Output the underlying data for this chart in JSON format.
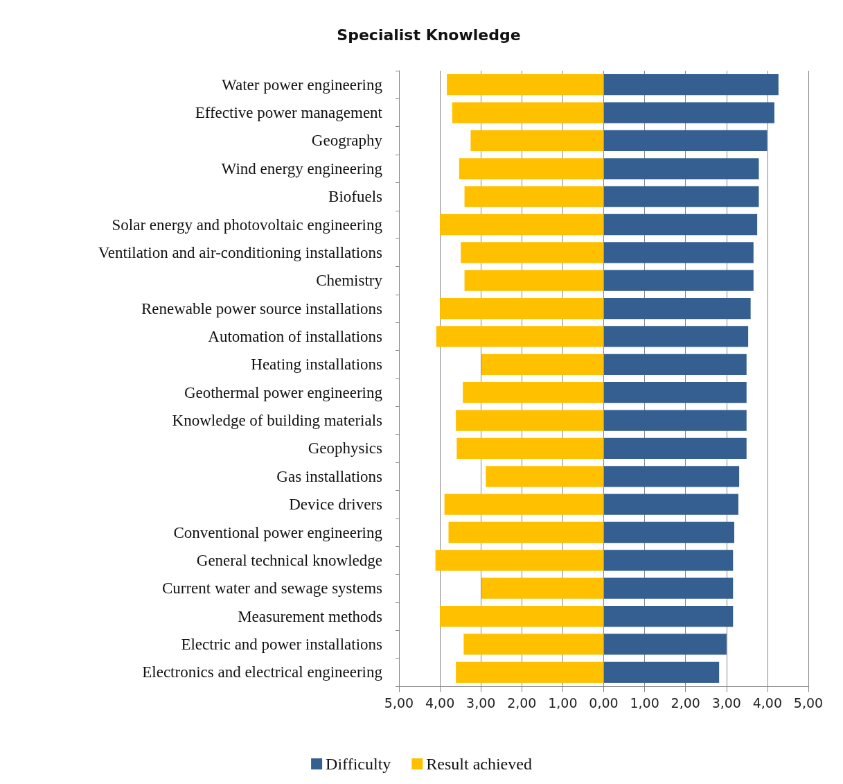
{
  "chart_data": {
    "type": "bar",
    "orientation": "horizontal",
    "stacked": true,
    "title": "Specialist Knowledge",
    "categories": [
      "Water power engineering",
      "Effective power management",
      "Geography",
      "Wind energy engineering",
      "Biofuels",
      "Solar energy and photovoltaic engineering",
      "Ventilation and air-conditioning installations",
      "Chemistry",
      "Renewable power source installations",
      "Automation of installations",
      "Heating installations",
      "Geothermal power engineering",
      "Knowledge of building materials",
      "Geophysics",
      "Gas installations",
      "Device drivers",
      "Conventional power engineering",
      "General technical knowledge",
      "Current water and sewage systems",
      "Measurement methods",
      "Electric and power installations",
      "Electronics and electrical engineering"
    ],
    "series": [
      {
        "name": "Difficulty",
        "color": "#355f91",
        "values": [
          4.27,
          4.17,
          3.99,
          3.79,
          3.79,
          3.75,
          3.66,
          3.66,
          3.59,
          3.53,
          3.49,
          3.49,
          3.49,
          3.49,
          3.31,
          3.29,
          3.19,
          3.16,
          3.16,
          3.16,
          3.0,
          2.82
        ]
      },
      {
        "name": "Result achieved",
        "color": "#ffc000",
        "values": [
          -3.83,
          -3.7,
          -3.25,
          -3.53,
          -3.4,
          -4.0,
          -3.49,
          -3.4,
          -4.0,
          -4.09,
          -2.99,
          -3.44,
          -3.61,
          -3.59,
          -2.88,
          -3.89,
          -3.79,
          -4.11,
          -2.99,
          -4.0,
          -3.42,
          -3.61
        ]
      }
    ],
    "xlim": [
      -5,
      5
    ],
    "xticks": [
      {
        "value": -5,
        "label": "5,00"
      },
      {
        "value": -4,
        "label": "4,00"
      },
      {
        "value": -3,
        "label": "3,00"
      },
      {
        "value": -2,
        "label": "2,00"
      },
      {
        "value": -1,
        "label": "1,00"
      },
      {
        "value": 0,
        "label": "0,00"
      },
      {
        "value": 1,
        "label": "1,00"
      },
      {
        "value": 2,
        "label": "2,00"
      },
      {
        "value": 3,
        "label": "3,00"
      },
      {
        "value": 4,
        "label": "4,00"
      },
      {
        "value": 5,
        "label": "5,00"
      }
    ],
    "grid": "x",
    "legend": "bottom"
  }
}
